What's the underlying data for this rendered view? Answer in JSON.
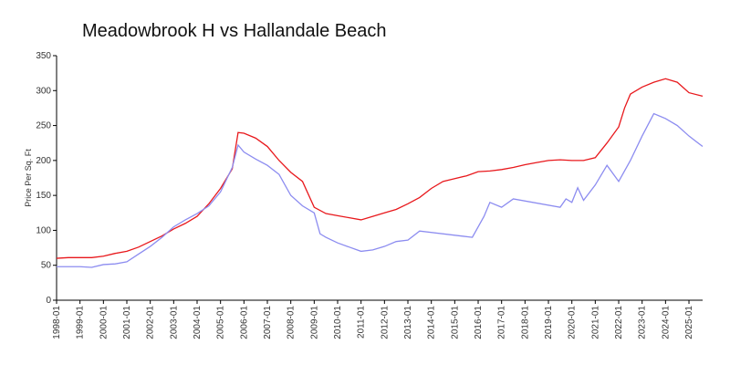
{
  "chart_data": {
    "type": "line",
    "title": "Meadowbrook H vs Hallandale Beach",
    "y_label": "Price Per Sq. Ft",
    "xlim": [
      "1998-01",
      "2025-08"
    ],
    "xticks": [
      "1998-01",
      "1999-01",
      "2000-01",
      "2001-01",
      "2002-01",
      "2003-01",
      "2004-01",
      "2005-01",
      "2006-01",
      "2007-01",
      "2008-01",
      "2009-01",
      "2010-01",
      "2011-01",
      "2012-01",
      "2013-01",
      "2014-01",
      "2015-01",
      "2016-01",
      "2017-01",
      "2018-01",
      "2019-01",
      "2020-01",
      "2021-01",
      "2022-01",
      "2023-01",
      "2024-01",
      "2025-01"
    ],
    "ylim": [
      0,
      350
    ],
    "yticks": [
      0,
      50,
      100,
      150,
      200,
      250,
      300,
      350
    ],
    "series": [
      {
        "color": "#e8181c",
        "x": [
          "1998-01",
          "1998-07",
          "1999-01",
          "1999-07",
          "2000-01",
          "2000-07",
          "2001-01",
          "2001-07",
          "2002-01",
          "2002-07",
          "2003-01",
          "2003-07",
          "2004-01",
          "2004-07",
          "2005-01",
          "2005-07",
          "2005-10",
          "2006-01",
          "2006-07",
          "2007-01",
          "2007-07",
          "2008-01",
          "2008-07",
          "2009-01",
          "2009-07",
          "2010-01",
          "2010-07",
          "2011-01",
          "2011-07",
          "2012-01",
          "2012-07",
          "2013-01",
          "2013-07",
          "2014-01",
          "2014-07",
          "2015-01",
          "2015-07",
          "2016-01",
          "2016-07",
          "2017-01",
          "2017-07",
          "2018-01",
          "2018-07",
          "2019-01",
          "2019-07",
          "2020-01",
          "2020-07",
          "2021-01",
          "2021-07",
          "2022-01",
          "2022-04",
          "2022-07",
          "2023-01",
          "2023-07",
          "2024-01",
          "2024-07",
          "2025-01",
          "2025-08"
        ],
        "values": [
          60,
          61,
          61,
          61,
          63,
          67,
          70,
          76,
          84,
          92,
          102,
          110,
          120,
          138,
          160,
          188,
          240,
          239,
          232,
          220,
          200,
          183,
          170,
          133,
          124,
          121,
          118,
          115,
          120,
          125,
          130,
          138,
          147,
          160,
          170,
          174,
          178,
          184,
          185,
          187,
          190,
          194,
          197,
          200,
          201,
          200,
          200,
          204,
          225,
          248,
          275,
          295,
          305,
          312,
          317,
          312,
          297,
          292
        ]
      },
      {
        "color": "#8c8cf0",
        "x": [
          "1998-01",
          "1999-01",
          "1999-07",
          "2000-01",
          "2000-07",
          "2001-01",
          "2001-07",
          "2002-01",
          "2002-07",
          "2003-01",
          "2003-07",
          "2004-01",
          "2004-07",
          "2005-01",
          "2005-07",
          "2005-10",
          "2006-01",
          "2006-07",
          "2007-01",
          "2007-07",
          "2008-01",
          "2008-07",
          "2009-01",
          "2009-04",
          "2009-07",
          "2010-01",
          "2010-07",
          "2011-01",
          "2011-07",
          "2012-01",
          "2012-07",
          "2013-01",
          "2013-07",
          "2015-10",
          "2016-04",
          "2016-07",
          "2017-01",
          "2017-07",
          "2019-07",
          "2019-10",
          "2020-01",
          "2020-04",
          "2020-07",
          "2021-01",
          "2021-07",
          "2022-01",
          "2022-07",
          "2023-01",
          "2023-07",
          "2024-01",
          "2024-07",
          "2025-01",
          "2025-08"
        ],
        "values": [
          48,
          48,
          47,
          51,
          52,
          55,
          66,
          77,
          90,
          105,
          115,
          124,
          135,
          155,
          190,
          222,
          212,
          202,
          193,
          180,
          150,
          135,
          125,
          95,
          90,
          82,
          76,
          70,
          72,
          77,
          84,
          86,
          99,
          90,
          120,
          140,
          133,
          145,
          133,
          145,
          140,
          161,
          143,
          165,
          193,
          170,
          200,
          235,
          267,
          260,
          250,
          235,
          220
        ]
      }
    ]
  }
}
